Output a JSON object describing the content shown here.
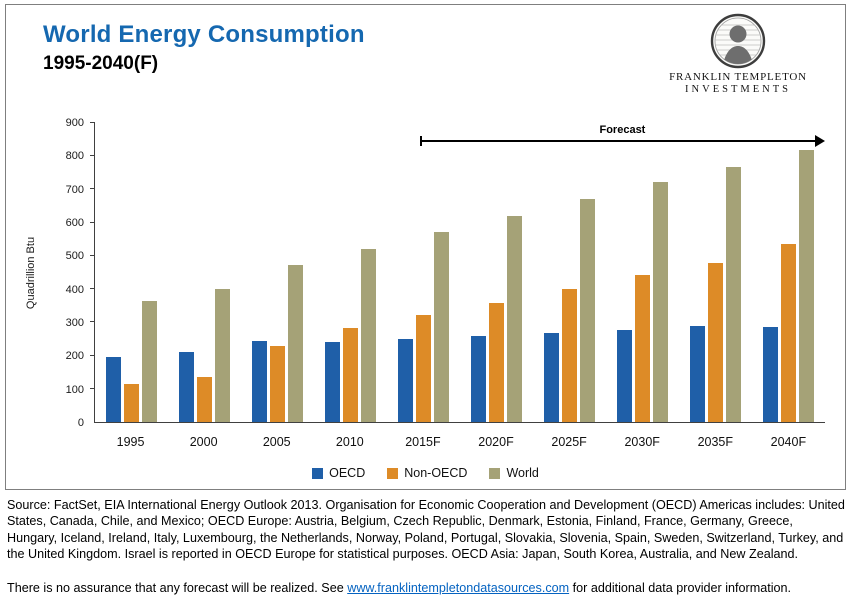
{
  "header": {
    "title": "World Energy Consumption",
    "subtitle": "1995-2040(F)"
  },
  "logo": {
    "name": "Franklin Templeton Investments",
    "line1": "FRANKLIN TEMPLETON",
    "line2": "INVESTMENTS"
  },
  "chart": {
    "ylabel": "Quadrillion Btu",
    "forecast_label": "Forecast"
  },
  "chart_data": {
    "type": "bar",
    "title": "World Energy Consumption 1995-2040(F)",
    "categories": [
      "1995",
      "2000",
      "2005",
      "2010",
      "2015F",
      "2020F",
      "2025F",
      "2030F",
      "2035F",
      "2040F"
    ],
    "series": [
      {
        "name": "OECD",
        "color": "#1F5FA8",
        "values": [
          195,
          212,
          245,
          240,
          251,
          259,
          268,
          278,
          288,
          285
        ]
      },
      {
        "name": "Non-OECD",
        "color": "#DD8B27",
        "values": [
          115,
          135,
          228,
          283,
          322,
          359,
          400,
          443,
          480,
          535
        ]
      },
      {
        "name": "World",
        "color": "#A5A277",
        "values": [
          365,
          400,
          472,
          522,
          573,
          620,
          670,
          721,
          768,
          820
        ]
      }
    ],
    "xlabel": "",
    "ylabel": "Quadrillion Btu",
    "ylim": [
      0,
      900
    ],
    "ytick_step": 100,
    "grid": false,
    "legend_position": "bottom",
    "annotations": [
      {
        "text": "Forecast",
        "type": "arrow",
        "from_category": "2015F",
        "to_category": "2040F"
      }
    ]
  },
  "footer": {
    "source": "Source: FactSet, EIA International Energy Outlook 2013. Organisation for Economic Cooperation and Development (OECD)  Americas includes: United States, Canada, Chile, and Mexico; OECD Europe: Austria, Belgium, Czech Republic, Denmark, Estonia, Finland, France, Germany, Greece, Hungary, Iceland, Ireland, Italy,  Luxembourg, the Netherlands, Norway, Poland, Portugal, Slovakia, Slovenia, Spain, Sweden, Switzerland, Turkey, and the United Kingdom. Israel is reported in OECD Europe for statistical purposes. OECD Asia: Japan, South Korea, Australia, and New Zealand.",
    "disclaimer_prefix": "There is no assurance that any forecast will be realized.  See ",
    "disclaimer_link": "www.franklintempletondatasources.com",
    "disclaimer_suffix": " for additional data provider information."
  },
  "colors": {
    "title_blue": "#1568B0",
    "link_blue": "#0563C1",
    "axis": "#404040",
    "oecd_blue": "#1F5FA8",
    "non_oecd_orange": "#DD8B27",
    "world_olive": "#A5A277"
  }
}
